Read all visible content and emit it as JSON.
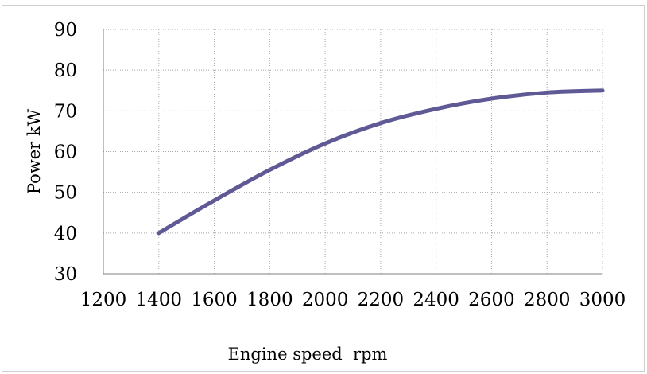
{
  "chart_data": {
    "type": "line",
    "title": "",
    "xlabel": "Engine speed  rpm",
    "ylabel": "Power kW",
    "xlim": [
      1200,
      3000
    ],
    "ylim": [
      30,
      90
    ],
    "xticks": [
      1200,
      1400,
      1600,
      1800,
      2000,
      2200,
      2400,
      2600,
      2800,
      3000
    ],
    "yticks": [
      30,
      40,
      50,
      60,
      70,
      80,
      90
    ],
    "grid": true,
    "legend": "none",
    "series": [
      {
        "color": "#5f5a96",
        "x": [
          1400,
          1600,
          1800,
          2000,
          2200,
          2400,
          2600,
          2800,
          3000
        ],
        "y": [
          40,
          48,
          55.5,
          62,
          67,
          70.5,
          73,
          74.5,
          75
        ]
      }
    ]
  }
}
